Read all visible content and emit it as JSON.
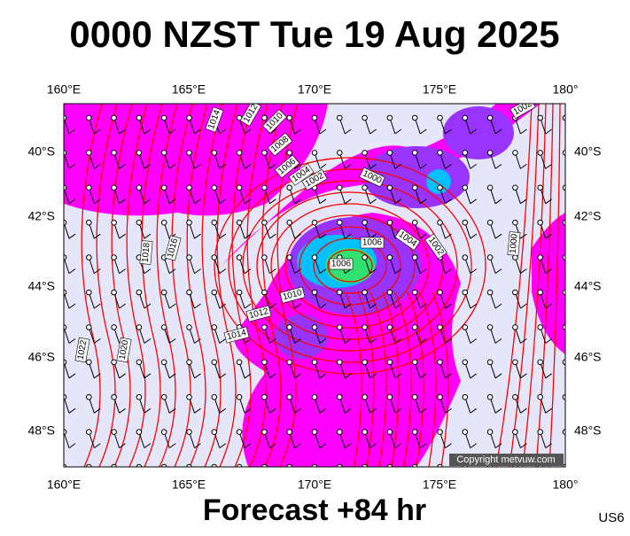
{
  "header": {
    "title": "0000 NZST Tue 19 Aug 2025"
  },
  "map": {
    "top_labels": [
      "160°E",
      "165°E",
      "170°E",
      "175°E",
      "180°"
    ],
    "bottom_labels": [
      "160°E",
      "165°E",
      "170°E",
      "175°E",
      "180°"
    ],
    "left_labels": [
      "40°S",
      "42°S",
      "44°S",
      "46°S",
      "48°S"
    ],
    "right_labels": [
      "40°S",
      "42°S",
      "44°S",
      "46°S",
      "48°S"
    ],
    "isobar_labels": [
      "1014",
      "1012",
      "1010",
      "1008",
      "1006",
      "1004",
      "1002",
      "1000",
      "1006",
      "1004",
      "1002",
      "1000",
      "1006",
      "1010",
      "1012",
      "1014",
      "1016",
      "1018",
      "1020",
      "1022",
      "1002"
    ],
    "copyright": "Copyright metvuw.com"
  },
  "footer": {
    "forecast": "Forecast +84 hr",
    "code": "US6"
  }
}
